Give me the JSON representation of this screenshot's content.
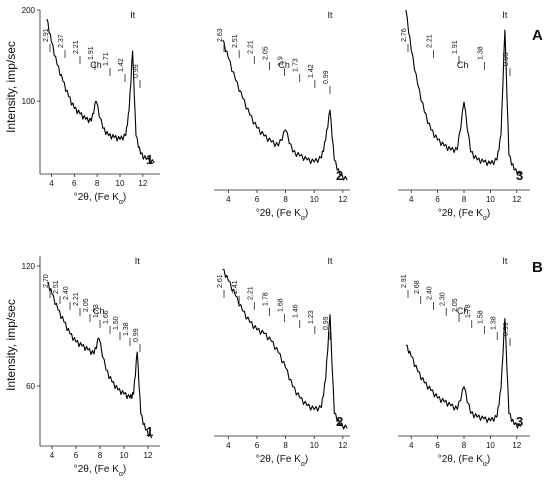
{
  "figure": {
    "row_labels": [
      "A",
      "B"
    ],
    "ylabel": "Intensity, imp/sec",
    "xlabel": "°2θ, (Fe Kα)"
  },
  "chart_data": [
    {
      "type": "line",
      "panel": "1",
      "row": "A",
      "xlabel": "°2θ, (Fe Kα)",
      "ylabel": "Intensity, imp/sec",
      "xlim": [
        3,
        13.5
      ],
      "ylim": [
        20,
        200
      ],
      "xticks": [
        4,
        6,
        8,
        10,
        12
      ],
      "yticks": [
        100,
        200
      ],
      "series": [
        {
          "x": [
            3.6,
            4.0,
            4.5,
            5.0,
            5.5,
            6.0,
            6.5,
            7.0,
            7.5,
            7.9,
            8.5,
            9.0,
            9.5,
            10.0,
            10.5,
            10.8,
            11.1,
            11.4,
            11.8,
            12.3,
            13.0
          ],
          "y": [
            190,
            165,
            140,
            122,
            105,
            92,
            86,
            80,
            78,
            100,
            70,
            62,
            60,
            58,
            62,
            90,
            155,
            62,
            42,
            36,
            32
          ]
        }
      ],
      "peak_labels": [
        "2.91",
        "2.37",
        "2.21",
        "1.91",
        "1.71",
        "1.42",
        "0.99"
      ],
      "phase_labels": [
        "Ch",
        "It"
      ]
    },
    {
      "type": "line",
      "panel": "2",
      "row": "A",
      "xlabel": "°2θ, (Fe Kα)",
      "ylabel": "",
      "xlim": [
        3,
        12.5
      ],
      "ylim": [
        20,
        200
      ],
      "xticks": [
        4,
        6,
        8,
        10,
        12
      ],
      "yticks": [],
      "series": [
        {
          "x": [
            3.6,
            4.0,
            4.5,
            5.0,
            5.5,
            6.0,
            6.5,
            7.0,
            7.5,
            8.0,
            8.5,
            9.0,
            9.5,
            10.0,
            10.5,
            10.8,
            11.1,
            11.4,
            11.8,
            12.3
          ],
          "y": [
            170,
            152,
            130,
            112,
            95,
            82,
            74,
            68,
            64,
            80,
            58,
            54,
            50,
            48,
            52,
            70,
            100,
            50,
            35,
            30
          ]
        }
      ],
      "peak_labels": [
        "2.63",
        "2.51",
        "2.21",
        "2.05",
        "1.9",
        "1.73",
        "1.42",
        "0.99"
      ],
      "phase_labels": [
        "Ch",
        "It"
      ]
    },
    {
      "type": "line",
      "panel": "3",
      "row": "A",
      "xlabel": "°2θ, (Fe Kα)",
      "ylabel": "",
      "xlim": [
        3,
        13
      ],
      "ylim": [
        20,
        200
      ],
      "xticks": [
        4,
        6,
        8,
        10,
        12
      ],
      "yticks": [],
      "series": [
        {
          "x": [
            3.6,
            4.0,
            4.5,
            5.0,
            5.5,
            6.0,
            6.5,
            7.0,
            7.5,
            8.0,
            8.5,
            9.0,
            9.5,
            10.0,
            10.5,
            10.8,
            11.1,
            11.4,
            11.8,
            12.3
          ],
          "y": [
            200,
            160,
            125,
            98,
            80,
            70,
            64,
            60,
            60,
            108,
            58,
            50,
            48,
            46,
            50,
            75,
            180,
            55,
            40,
            35
          ]
        }
      ],
      "peak_labels": [
        "2.76",
        "2.21",
        "1.91",
        "1.38",
        "0.99"
      ],
      "phase_labels": [
        "Ch",
        "It"
      ]
    },
    {
      "type": "line",
      "panel": "1",
      "row": "B",
      "xlabel": "°2θ, (Fe Kα)",
      "ylabel": "Intensity, imp/sec",
      "xlim": [
        3,
        13
      ],
      "ylim": [
        30,
        125
      ],
      "xticks": [
        4,
        6,
        8,
        10,
        12
      ],
      "yticks": [
        60,
        120
      ],
      "series": [
        {
          "x": [
            3.6,
            4.0,
            4.5,
            5.0,
            5.5,
            6.0,
            6.5,
            7.0,
            7.5,
            7.9,
            8.5,
            9.0,
            9.5,
            10.0,
            10.5,
            10.8,
            11.1,
            11.4,
            11.8,
            12.3
          ],
          "y": [
            112,
            106,
            98,
            92,
            86,
            82,
            80,
            78,
            76,
            84,
            68,
            62,
            58,
            56,
            54,
            56,
            77,
            46,
            38,
            34
          ]
        }
      ],
      "peak_labels": [
        "2.70",
        "2.51",
        "2.40",
        "2.21",
        "2.05",
        "1.73",
        "1.66",
        "1.50",
        "1.38",
        "0.99"
      ],
      "phase_labels": [
        "Ch",
        "It"
      ]
    },
    {
      "type": "line",
      "panel": "2",
      "row": "B",
      "xlabel": "°2θ, (Fe Kα)",
      "ylabel": "",
      "xlim": [
        3,
        12.5
      ],
      "ylim": [
        30,
        125
      ],
      "xticks": [
        4,
        6,
        8,
        10,
        12
      ],
      "yticks": [],
      "series": [
        {
          "x": [
            3.6,
            4.0,
            4.5,
            5.0,
            5.5,
            6.0,
            6.5,
            7.0,
            7.5,
            8.0,
            8.5,
            9.0,
            9.5,
            10.0,
            10.5,
            10.8,
            11.1,
            11.4,
            11.8,
            12.3
          ],
          "y": [
            118,
            112,
            104,
            96,
            90,
            86,
            84,
            80,
            74,
            66,
            56,
            50,
            46,
            44,
            45,
            60,
            94,
            42,
            36,
            34
          ]
        }
      ],
      "peak_labels": [
        "2.61",
        "2.41",
        "2.21",
        "1.78",
        "1.68",
        "1.46",
        "1.23",
        "0.99"
      ],
      "phase_labels": [
        "It"
      ]
    },
    {
      "type": "line",
      "panel": "3",
      "row": "B",
      "xlabel": "°2θ, (Fe Kα)",
      "ylabel": "",
      "xlim": [
        3,
        13
      ],
      "ylim": [
        30,
        125
      ],
      "xticks": [
        4,
        6,
        8,
        10,
        12
      ],
      "yticks": [],
      "series": [
        {
          "x": [
            3.6,
            4.0,
            4.5,
            5.0,
            5.5,
            6.0,
            6.5,
            7.0,
            7.5,
            8.0,
            8.5,
            9.0,
            9.5,
            10.0,
            10.5,
            10.8,
            11.1,
            11.4,
            11.8,
            12.3
          ],
          "y": [
            78,
            72,
            64,
            58,
            54,
            50,
            48,
            46,
            44,
            56,
            42,
            40,
            39,
            38,
            40,
            55,
            92,
            42,
            36,
            35
          ]
        }
      ],
      "peak_labels": [
        "2.91",
        "2.68",
        "2.40",
        "2.30",
        "2.05",
        "1.78",
        "1.58",
        "1.38",
        "0.99"
      ],
      "phase_labels": [
        "Ch",
        "It"
      ]
    }
  ]
}
